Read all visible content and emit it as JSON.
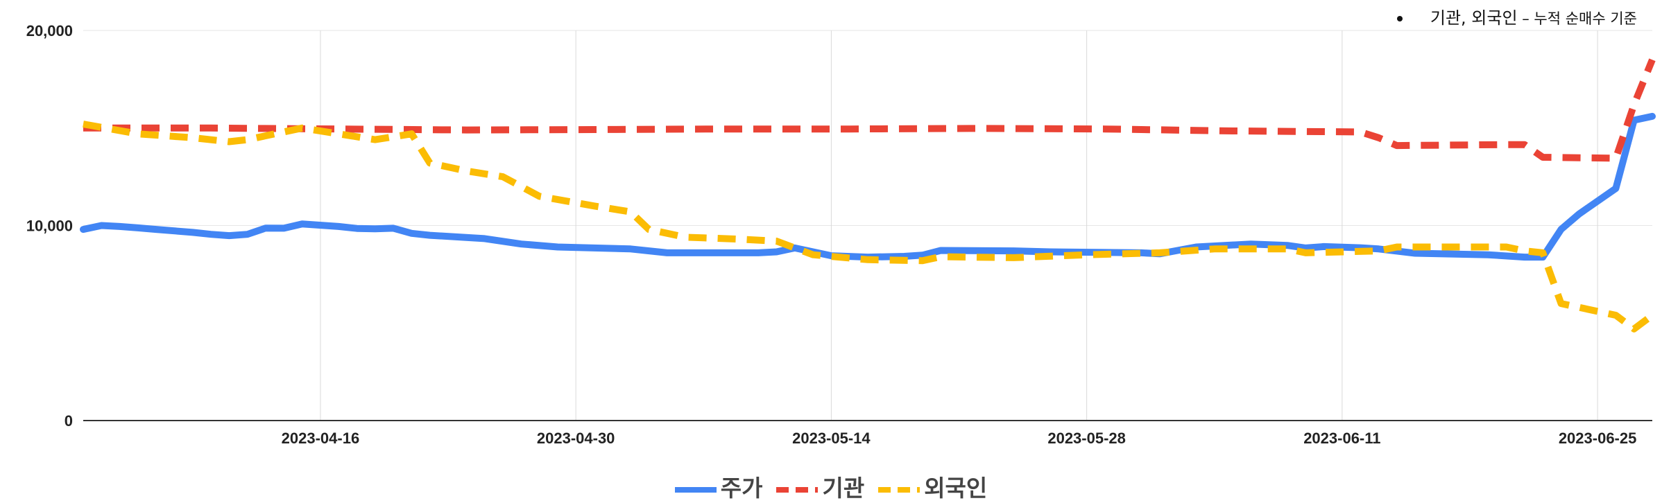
{
  "note": {
    "bold_text": "기관, 외국인",
    "rest_text": " – 누적 순매수 기준"
  },
  "chart_data": {
    "type": "line",
    "title": "",
    "xlabel": "",
    "ylabel": "",
    "ylim": [
      0,
      20000
    ],
    "y_ticks": [
      {
        "value": 0,
        "label": "0"
      },
      {
        "value": 10000,
        "label": "10,000"
      },
      {
        "value": 20000,
        "label": "20,000"
      }
    ],
    "x_range": [
      "2023-04-03",
      "2023-06-28"
    ],
    "x_ticks": [
      "2023-04-16",
      "2023-04-30",
      "2023-05-14",
      "2023-05-28",
      "2023-06-11",
      "2023-06-25"
    ],
    "grid": true,
    "legend_position": "bottom",
    "series": [
      {
        "name": "주가",
        "color": "#4285F4",
        "dash": "solid",
        "points": [
          [
            "2023-04-03",
            9800
          ],
          [
            "2023-04-04",
            10000
          ],
          [
            "2023-04-05",
            9950
          ],
          [
            "2023-04-06",
            9880
          ],
          [
            "2023-04-07",
            9800
          ],
          [
            "2023-04-09",
            9650
          ],
          [
            "2023-04-10",
            9550
          ],
          [
            "2023-04-11",
            9480
          ],
          [
            "2023-04-12",
            9550
          ],
          [
            "2023-04-13",
            9870
          ],
          [
            "2023-04-14",
            9860
          ],
          [
            "2023-04-15",
            10080
          ],
          [
            "2023-04-17",
            9950
          ],
          [
            "2023-04-18",
            9850
          ],
          [
            "2023-04-19",
            9830
          ],
          [
            "2023-04-20",
            9860
          ],
          [
            "2023-04-21",
            9600
          ],
          [
            "2023-04-22",
            9500
          ],
          [
            "2023-04-25",
            9330
          ],
          [
            "2023-04-27",
            9050
          ],
          [
            "2023-04-29",
            8900
          ],
          [
            "2023-05-03",
            8800
          ],
          [
            "2023-05-05",
            8600
          ],
          [
            "2023-05-10",
            8600
          ],
          [
            "2023-05-11",
            8650
          ],
          [
            "2023-05-12",
            8850
          ],
          [
            "2023-05-14",
            8450
          ],
          [
            "2023-05-16",
            8380
          ],
          [
            "2023-05-18",
            8420
          ],
          [
            "2023-05-19",
            8480
          ],
          [
            "2023-05-20",
            8720
          ],
          [
            "2023-05-24",
            8700
          ],
          [
            "2023-05-26",
            8650
          ],
          [
            "2023-05-31",
            8600
          ],
          [
            "2023-06-01",
            8550
          ],
          [
            "2023-06-03",
            8900
          ],
          [
            "2023-06-06",
            9050
          ],
          [
            "2023-06-08",
            8980
          ],
          [
            "2023-06-09",
            8850
          ],
          [
            "2023-06-10",
            8920
          ],
          [
            "2023-06-12",
            8860
          ],
          [
            "2023-06-13",
            8800
          ],
          [
            "2023-06-15",
            8580
          ],
          [
            "2023-06-19",
            8500
          ],
          [
            "2023-06-21",
            8380
          ],
          [
            "2023-06-22",
            8380
          ],
          [
            "2023-06-23",
            9800
          ],
          [
            "2023-06-24",
            10600
          ],
          [
            "2023-06-26",
            11900
          ],
          [
            "2023-06-27",
            15400
          ],
          [
            "2023-06-28",
            15600
          ]
        ]
      },
      {
        "name": "기관",
        "color": "#EA4335",
        "dash": "dashed",
        "points": [
          [
            "2023-04-03",
            15000
          ],
          [
            "2023-04-10",
            15000
          ],
          [
            "2023-04-17",
            14950
          ],
          [
            "2023-04-24",
            14900
          ],
          [
            "2023-05-01",
            14920
          ],
          [
            "2023-05-08",
            14950
          ],
          [
            "2023-05-15",
            14950
          ],
          [
            "2023-05-22",
            14980
          ],
          [
            "2023-05-29",
            14950
          ],
          [
            "2023-06-05",
            14850
          ],
          [
            "2023-06-12",
            14800
          ],
          [
            "2023-06-13",
            14500
          ],
          [
            "2023-06-14",
            14100
          ],
          [
            "2023-06-20",
            14150
          ],
          [
            "2023-06-21",
            14150
          ],
          [
            "2023-06-22",
            13500
          ],
          [
            "2023-06-26",
            13450
          ],
          [
            "2023-06-27",
            16200
          ],
          [
            "2023-06-28",
            18500
          ]
        ]
      },
      {
        "name": "외국인",
        "color": "#FBBC04",
        "dash": "dashed",
        "points": [
          [
            "2023-04-03",
            15200
          ],
          [
            "2023-04-06",
            14700
          ],
          [
            "2023-04-09",
            14500
          ],
          [
            "2023-04-11",
            14300
          ],
          [
            "2023-04-12",
            14400
          ],
          [
            "2023-04-14",
            14800
          ],
          [
            "2023-04-15",
            15000
          ],
          [
            "2023-04-19",
            14400
          ],
          [
            "2023-04-21",
            14700
          ],
          [
            "2023-04-22",
            13200
          ],
          [
            "2023-04-24",
            12800
          ],
          [
            "2023-04-26",
            12500
          ],
          [
            "2023-04-28",
            11500
          ],
          [
            "2023-05-01",
            11000
          ],
          [
            "2023-05-03",
            10700
          ],
          [
            "2023-05-04",
            9800
          ],
          [
            "2023-05-06",
            9400
          ],
          [
            "2023-05-09",
            9300
          ],
          [
            "2023-05-11",
            9200
          ],
          [
            "2023-05-13",
            8500
          ],
          [
            "2023-05-16",
            8250
          ],
          [
            "2023-05-19",
            8200
          ],
          [
            "2023-05-20",
            8400
          ],
          [
            "2023-05-24",
            8350
          ],
          [
            "2023-05-28",
            8500
          ],
          [
            "2023-06-01",
            8600
          ],
          [
            "2023-06-04",
            8800
          ],
          [
            "2023-06-08",
            8800
          ],
          [
            "2023-06-09",
            8600
          ],
          [
            "2023-06-13",
            8700
          ],
          [
            "2023-06-14",
            8900
          ],
          [
            "2023-06-20",
            8900
          ],
          [
            "2023-06-21",
            8700
          ],
          [
            "2023-06-22",
            8600
          ],
          [
            "2023-06-23",
            6000
          ],
          [
            "2023-06-26",
            5400
          ],
          [
            "2023-06-27",
            4700
          ],
          [
            "2023-06-28",
            5400
          ]
        ]
      }
    ]
  }
}
